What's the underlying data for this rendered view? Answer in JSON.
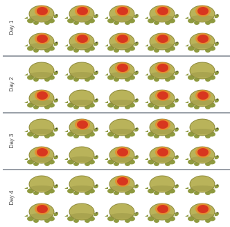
{
  "days": [
    {
      "label": "Day 1",
      "rows": [
        [
          "red",
          "red",
          "red",
          "red",
          "red"
        ],
        [
          "red",
          "red",
          "red",
          "red",
          "red"
        ]
      ]
    },
    {
      "label": "Day 2",
      "rows": [
        [
          "plain",
          "plain",
          "red",
          "red",
          "plain"
        ],
        [
          "red",
          "plain",
          "plain",
          "red",
          "red"
        ]
      ]
    },
    {
      "label": "Day 3",
      "rows": [
        [
          "plain",
          "red",
          "plain",
          "red",
          "plain"
        ],
        [
          "red",
          "plain",
          "red",
          "red",
          "red"
        ]
      ]
    },
    {
      "label": "Day 4",
      "rows": [
        [
          "plain",
          "plain",
          "red",
          "plain",
          "plain"
        ],
        [
          "red",
          "plain",
          "plain",
          "red",
          "red"
        ]
      ]
    }
  ],
  "icon": "turtle-icon",
  "colors": {
    "shell": "#b9b35a",
    "shell_edge": "#8d8a3c",
    "body": "#8f9a3f",
    "red_spot": "#d8361f",
    "red_glow": "#e98a2a",
    "divider": "#9aa0a8",
    "label": "#4a4a4a"
  }
}
